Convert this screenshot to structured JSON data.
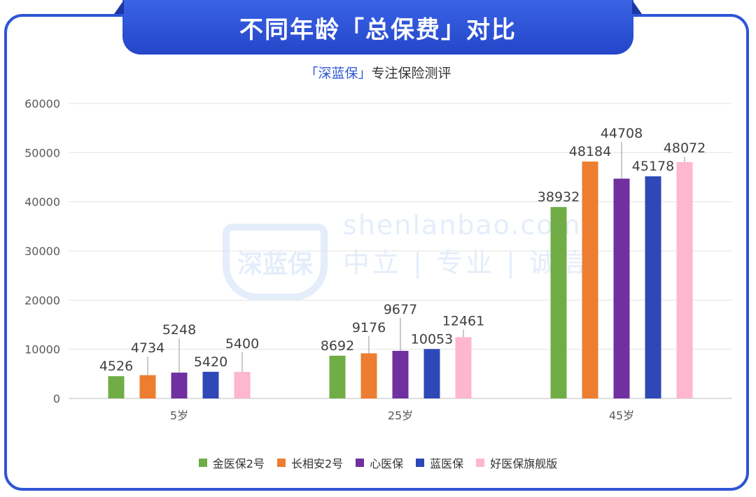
{
  "header": {
    "title": "不同年龄「总保费」对比",
    "subtitle_brand": "「深蓝保」",
    "subtitle_rest": "专注保险测评"
  },
  "watermark": {
    "logo_text": "深蓝保",
    "line1": "shenlanbao.com",
    "line2": "中立 | 专业 | 诚信"
  },
  "colors": {
    "frame": "#2d55d6",
    "series": [
      "#70ad47",
      "#ed7d31",
      "#7030a0",
      "#2e48b8",
      "#ffb6cf"
    ]
  },
  "chart_data": {
    "type": "bar",
    "title": "",
    "xlabel": "",
    "ylabel": "",
    "categories": [
      "5岁",
      "25岁",
      "45岁"
    ],
    "ylim": [
      0,
      60000
    ],
    "yticks": [
      0,
      10000,
      20000,
      30000,
      40000,
      50000,
      60000
    ],
    "grid": true,
    "legend_position": "bottom",
    "series": [
      {
        "name": "金医保2号",
        "values": [
          4526,
          8692,
          38932
        ]
      },
      {
        "name": "长相安2号",
        "values": [
          4734,
          9176,
          48184
        ]
      },
      {
        "name": "心医保",
        "values": [
          5248,
          9677,
          44708
        ]
      },
      {
        "name": "蓝医保",
        "values": [
          5420,
          10053,
          45178
        ]
      },
      {
        "name": "好医保旗舰版",
        "values": [
          5400,
          12461,
          48072
        ]
      }
    ]
  }
}
